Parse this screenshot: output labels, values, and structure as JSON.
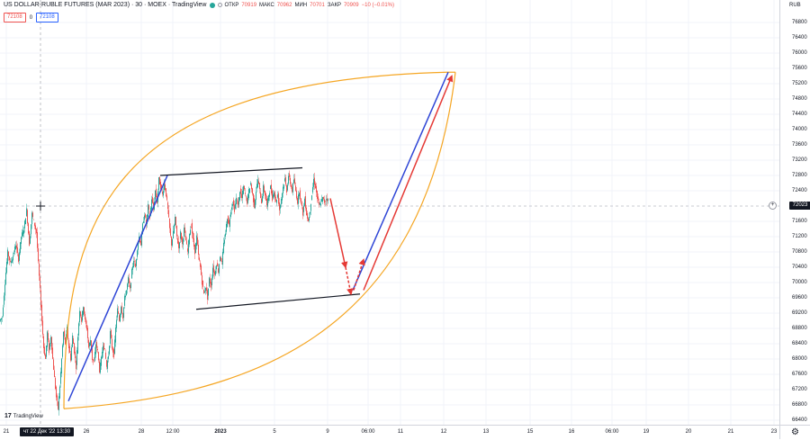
{
  "legend": {
    "title": "US DOLLAR-RUBLE FUTURES (MAR 2023) · 30 · MOEX · TradingView",
    "open_label": "ОТКР",
    "open_value": "70919",
    "high_label": "МАКС",
    "high_value": "70962",
    "low_label": "МИН",
    "low_value": "70701",
    "close_label": "ЗАКР",
    "close_value": "70909",
    "change": "−10 (−0.01%)"
  },
  "trade": {
    "sell_price": "72108",
    "spread": "0",
    "buy_price": "72108"
  },
  "price_axis": {
    "currency": "RUB",
    "ticks": [
      "76800",
      "76400",
      "76000",
      "75600",
      "75200",
      "74800",
      "74400",
      "74000",
      "73600",
      "73200",
      "72800",
      "72400",
      "71600",
      "71200",
      "70800",
      "70400",
      "70000",
      "69600",
      "69200",
      "68800",
      "68400",
      "68000",
      "67600",
      "67200",
      "66800",
      "66400"
    ],
    "current_price": "72023"
  },
  "time_axis": {
    "ticks": [
      "21",
      "26",
      "28",
      "12:00",
      "2023",
      "5",
      "9",
      "06:00",
      "11",
      "12",
      "13",
      "15",
      "16",
      "06:00",
      "19",
      "20",
      "21",
      "23",
      "06:00"
    ],
    "cursor_label": "чт 22 Дек '22   13:30"
  },
  "branding": {
    "logo_text": "TradingView"
  },
  "colors": {
    "candle_up": "#26a69a",
    "candle_down": "#ef5350",
    "arc": "#f5a623",
    "trend_blue": "#2e45d6",
    "arrow_red": "#e53935",
    "channel": "#131722"
  },
  "chart_data": {
    "type": "candlestick",
    "title": "US DOLLAR-RUBLE FUTURES (MAR 2023)",
    "interval": "30",
    "exchange": "MOEX",
    "close_path": [
      [
        0,
        69000
      ],
      [
        3,
        69100
      ],
      [
        6,
        70000
      ],
      [
        9,
        70800
      ],
      [
        12,
        70500
      ],
      [
        15,
        70700
      ],
      [
        18,
        71000
      ],
      [
        21,
        70600
      ],
      [
        24,
        71200
      ],
      [
        27,
        71400
      ],
      [
        30,
        71900
      ],
      [
        33,
        71000
      ],
      [
        36,
        71800
      ],
      [
        38,
        71600
      ],
      [
        41,
        71300
      ],
      [
        43,
        70500
      ],
      [
        45,
        69800
      ],
      [
        47,
        69000
      ],
      [
        49,
        68300
      ],
      [
        51,
        68000
      ],
      [
        53,
        68700
      ],
      [
        55,
        68200
      ],
      [
        57,
        68600
      ],
      [
        59,
        68000
      ],
      [
        61,
        67500
      ],
      [
        63,
        67000
      ],
      [
        65,
        66700
      ],
      [
        67,
        67300
      ],
      [
        69,
        68000
      ],
      [
        71,
        68700
      ],
      [
        73,
        68400
      ],
      [
        75,
        68800
      ],
      [
        77,
        68300
      ],
      [
        79,
        68000
      ],
      [
        81,
        68600
      ],
      [
        83,
        68200
      ],
      [
        85,
        67800
      ],
      [
        87,
        68600
      ],
      [
        89,
        69300
      ],
      [
        91,
        69000
      ],
      [
        93,
        69400
      ],
      [
        95,
        69000
      ],
      [
        97,
        68800
      ],
      [
        99,
        68300
      ],
      [
        101,
        68500
      ],
      [
        103,
        68000
      ],
      [
        105,
        67900
      ],
      [
        107,
        68400
      ],
      [
        109,
        68200
      ],
      [
        111,
        67700
      ],
      [
        113,
        68000
      ],
      [
        115,
        68400
      ],
      [
        117,
        68200
      ],
      [
        119,
        67800
      ],
      [
        121,
        68100
      ],
      [
        123,
        68700
      ],
      [
        125,
        68300
      ],
      [
        127,
        68100
      ],
      [
        129,
        68800
      ],
      [
        131,
        69300
      ],
      [
        133,
        69000
      ],
      [
        135,
        69400
      ],
      [
        137,
        69100
      ],
      [
        139,
        69600
      ],
      [
        141,
        69800
      ],
      [
        143,
        70100
      ],
      [
        145,
        69800
      ],
      [
        147,
        70300
      ],
      [
        149,
        70600
      ],
      [
        151,
        70400
      ],
      [
        153,
        70900
      ],
      [
        155,
        71200
      ],
      [
        157,
        71000
      ],
      [
        159,
        71500
      ],
      [
        161,
        71800
      ],
      [
        163,
        71500
      ],
      [
        165,
        72000
      ],
      [
        167,
        71700
      ],
      [
        169,
        72200
      ],
      [
        171,
        71900
      ],
      [
        173,
        72400
      ],
      [
        175,
        72100
      ],
      [
        177,
        72700
      ],
      [
        179,
        72500
      ],
      [
        181,
        72300
      ],
      [
        183,
        72600
      ],
      [
        185,
        72300
      ],
      [
        187,
        71900
      ],
      [
        189,
        71400
      ],
      [
        191,
        71000
      ],
      [
        193,
        71300
      ],
      [
        195,
        71700
      ],
      [
        197,
        71200
      ],
      [
        199,
        70900
      ],
      [
        201,
        71300
      ],
      [
        203,
        71000
      ],
      [
        205,
        71400
      ],
      [
        207,
        71100
      ],
      [
        209,
        70800
      ],
      [
        211,
        71300
      ],
      [
        213,
        71500
      ],
      [
        215,
        71100
      ],
      [
        217,
        70800
      ],
      [
        219,
        71200
      ],
      [
        221,
        70700
      ],
      [
        223,
        70400
      ],
      [
        225,
        70000
      ],
      [
        227,
        69700
      ],
      [
        229,
        69900
      ],
      [
        231,
        69600
      ],
      [
        233,
        70100
      ],
      [
        235,
        69900
      ],
      [
        237,
        70400
      ],
      [
        239,
        70200
      ],
      [
        241,
        70500
      ],
      [
        243,
        70300
      ],
      [
        245,
        70700
      ],
      [
        247,
        70500
      ],
      [
        249,
        71000
      ],
      [
        251,
        71300
      ],
      [
        253,
        71700
      ],
      [
        255,
        71500
      ],
      [
        257,
        71900
      ],
      [
        259,
        72100
      ],
      [
        261,
        71900
      ],
      [
        263,
        72200
      ],
      [
        265,
        72000
      ],
      [
        267,
        72400
      ],
      [
        269,
        72200
      ],
      [
        271,
        72500
      ],
      [
        273,
        72300
      ],
      [
        275,
        72100
      ],
      [
        277,
        72400
      ],
      [
        279,
        72600
      ],
      [
        281,
        72300
      ],
      [
        283,
        72000
      ],
      [
        285,
        72400
      ],
      [
        287,
        72700
      ],
      [
        289,
        72400
      ],
      [
        291,
        72100
      ],
      [
        293,
        72500
      ],
      [
        295,
        72300
      ],
      [
        297,
        72000
      ],
      [
        299,
        72300
      ],
      [
        301,
        72500
      ],
      [
        303,
        72200
      ],
      [
        305,
        72400
      ],
      [
        307,
        72100
      ],
      [
        309,
        72300
      ],
      [
        311,
        71900
      ],
      [
        313,
        72200
      ],
      [
        315,
        72500
      ],
      [
        317,
        72700
      ],
      [
        319,
        72400
      ],
      [
        321,
        72800
      ],
      [
        323,
        72600
      ],
      [
        325,
        72400
      ],
      [
        327,
        72700
      ],
      [
        329,
        72400
      ],
      [
        331,
        72100
      ],
      [
        333,
        72400
      ],
      [
        335,
        72100
      ],
      [
        337,
        71800
      ],
      [
        339,
        72200
      ],
      [
        341,
        71800
      ],
      [
        343,
        71600
      ],
      [
        345,
        71900
      ],
      [
        347,
        72300
      ],
      [
        349,
        72700
      ],
      [
        351,
        72500
      ],
      [
        353,
        72200
      ],
      [
        355,
        72000
      ],
      [
        357,
        72100
      ],
      [
        359,
        72200
      ],
      [
        361,
        72100
      ],
      [
        363,
        72200
      ],
      [
        365,
        72150
      ]
    ],
    "drawings": [
      {
        "type": "arc",
        "color": "orange",
        "points": [
          [
            71,
            66700
          ],
          [
            497,
            75500
          ]
        ]
      },
      {
        "type": "trendline",
        "color": "blue",
        "points": [
          [
            76,
            66900
          ],
          [
            186,
            72800
          ]
        ]
      },
      {
        "type": "trendline",
        "color": "blue",
        "points": [
          [
            392,
            69800
          ],
          [
            498,
            75500
          ]
        ]
      },
      {
        "type": "channel-line",
        "color": "black",
        "points": [
          [
            178,
            72800
          ],
          [
            336,
            73000
          ]
        ]
      },
      {
        "type": "channel-line",
        "color": "black",
        "points": [
          [
            218,
            69300
          ],
          [
            400,
            69700
          ]
        ]
      },
      {
        "type": "arrow",
        "color": "red",
        "style": "solid",
        "points": [
          [
            367,
            72200
          ],
          [
            384,
            70400
          ]
        ]
      },
      {
        "type": "arrow",
        "color": "red",
        "style": "dashed",
        "points": [
          [
            384,
            70400
          ],
          [
            390,
            69700
          ]
        ]
      },
      {
        "type": "arrow",
        "color": "red",
        "style": "dashed",
        "points": [
          [
            393,
            69800
          ],
          [
            404,
            70600
          ]
        ]
      },
      {
        "type": "arrow",
        "color": "red",
        "style": "solid",
        "points": [
          [
            404,
            69800
          ],
          [
            502,
            75400
          ]
        ]
      }
    ]
  }
}
